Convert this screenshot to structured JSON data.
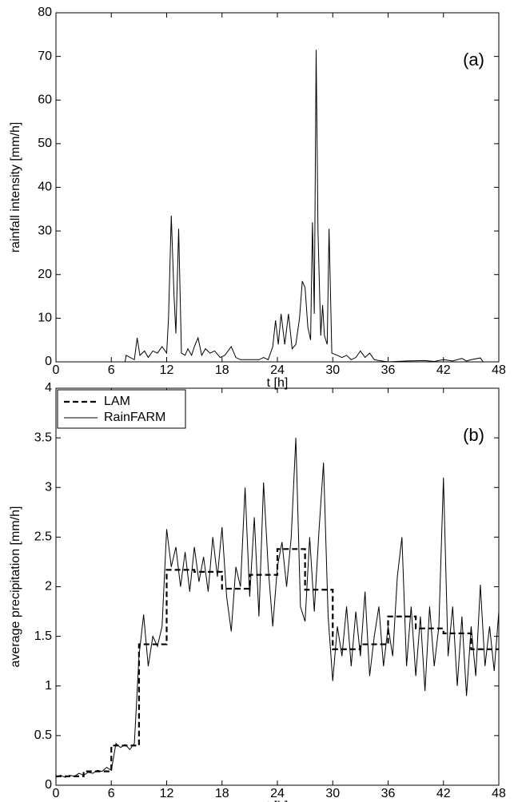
{
  "chart_data": [
    {
      "type": "line",
      "xlabel": "t [h]",
      "ylabel": "rainfall intensity [mm/h]",
      "annotation": "(a)",
      "xlim": [
        0,
        48
      ],
      "xticks": [
        0,
        6,
        12,
        18,
        24,
        30,
        36,
        42,
        48
      ],
      "ylim": [
        0,
        80
      ],
      "yticks": [
        0,
        10,
        20,
        30,
        40,
        50,
        60,
        70,
        80
      ],
      "x": [
        0,
        7.5,
        7.6,
        8.5,
        8.8,
        9.1,
        9.6,
        10,
        10.5,
        11,
        11.5,
        12,
        12.2,
        12.5,
        12.8,
        13,
        13.3,
        13.6,
        14,
        14.3,
        14.7,
        15,
        15.4,
        15.8,
        16.2,
        16.7,
        17.2,
        17.8,
        18.3,
        19,
        19.5,
        20,
        21,
        22,
        22.5,
        23,
        23.5,
        23.8,
        24.1,
        24.4,
        24.8,
        25.2,
        25.6,
        26,
        26.4,
        26.7,
        27,
        27.3,
        27.6,
        27.8,
        28,
        28.2,
        28.4,
        28.7,
        28.9,
        29.1,
        29.4,
        29.6,
        29.9,
        30.5,
        31,
        31.5,
        32,
        32.5,
        33,
        33.5,
        34,
        34.5,
        35,
        36,
        38,
        40,
        41,
        42,
        43,
        44,
        44.5,
        45,
        46,
        46.3,
        48
      ],
      "series": [
        {
          "color": "#000000",
          "style": "solid",
          "values": [
            0,
            0,
            1.5,
            0.5,
            5.5,
            1.5,
            2.5,
            1,
            2.5,
            2,
            3.5,
            2,
            10,
            33.5,
            15,
            6.5,
            30.5,
            2,
            1.5,
            3,
            1.5,
            3.5,
            5.5,
            1.5,
            3,
            2,
            2.5,
            1,
            1.5,
            3.5,
            1,
            0.5,
            0.5,
            0.5,
            1,
            0.5,
            3.5,
            9.5,
            4,
            11,
            4,
            11,
            3,
            4,
            10,
            18.5,
            17,
            8,
            5,
            32,
            11,
            71.5,
            30,
            6,
            13,
            6,
            4,
            30.5,
            2,
            1.5,
            1,
            1.5,
            0.5,
            1,
            2.5,
            1,
            2,
            0.5,
            0.3,
            0,
            0.2,
            0.3,
            0.1,
            0.5,
            0.2,
            0.8,
            0.2,
            0.5,
            0.9,
            0,
            0
          ]
        }
      ]
    },
    {
      "type": "line",
      "xlabel": "t [h]",
      "ylabel": "average precipitation [mm/h]",
      "annotation": "(b)",
      "legend": "upper left",
      "xlim": [
        0,
        48
      ],
      "xticks": [
        0,
        6,
        12,
        18,
        24,
        30,
        36,
        42,
        48
      ],
      "ylim": [
        0,
        4
      ],
      "yticks": [
        0,
        0.5,
        1,
        1.5,
        2,
        2.5,
        3,
        3.5,
        4
      ],
      "x": [
        0,
        0.5,
        1,
        1.5,
        2,
        2.5,
        3,
        3.5,
        4,
        4.5,
        5,
        5.5,
        6,
        6.5,
        7,
        7.5,
        8,
        8.5,
        9,
        9.5,
        10,
        10.5,
        11,
        11.5,
        12,
        12.5,
        13,
        13.5,
        14,
        14.5,
        15,
        15.5,
        16,
        16.5,
        17,
        17.5,
        18,
        18.5,
        19,
        19.5,
        20,
        20.5,
        21,
        21.5,
        22,
        22.5,
        23,
        23.5,
        24,
        24.5,
        25,
        25.5,
        26,
        26.5,
        27,
        27.5,
        28,
        28.5,
        29,
        29.5,
        30,
        30.5,
        31,
        31.5,
        32,
        32.5,
        33,
        33.5,
        34,
        34.5,
        35,
        35.5,
        36,
        36.5,
        37,
        37.5,
        38,
        38.5,
        39,
        39.5,
        40,
        40.5,
        41,
        41.5,
        42,
        42.5,
        43,
        43.5,
        44,
        44.5,
        45,
        45.5,
        46,
        46.5,
        47,
        47.5,
        48
      ],
      "series": [
        {
          "name": "LAM",
          "color": "#000000",
          "style": "dashed",
          "x": [
            0,
            3,
            3,
            6,
            6,
            9,
            9,
            12,
            12,
            15,
            15,
            18,
            18,
            21,
            21,
            24,
            24,
            27,
            27,
            30,
            30,
            33,
            33,
            36,
            36,
            39,
            39,
            42,
            42,
            45,
            45,
            48
          ],
          "values": [
            0.09,
            0.09,
            0.14,
            0.14,
            0.4,
            0.4,
            1.42,
            1.42,
            2.17,
            2.17,
            2.15,
            2.15,
            1.98,
            1.98,
            2.12,
            2.12,
            2.38,
            2.38,
            1.97,
            1.97,
            1.37,
            1.37,
            1.42,
            1.42,
            1.7,
            1.7,
            1.58,
            1.58,
            1.53,
            1.53,
            1.37,
            1.37
          ]
        },
        {
          "name": "RainFARM",
          "color": "#000000",
          "style": "solid",
          "values": [
            0.08,
            0.1,
            0.08,
            0.1,
            0.09,
            0.12,
            0.1,
            0.13,
            0.12,
            0.15,
            0.14,
            0.18,
            0.15,
            0.42,
            0.38,
            0.41,
            0.36,
            0.42,
            1.3,
            1.72,
            1.2,
            1.5,
            1.4,
            1.6,
            2.58,
            2.2,
            2.4,
            2.0,
            2.35,
            1.95,
            2.4,
            2.05,
            2.3,
            1.95,
            2.5,
            2.1,
            2.6,
            1.9,
            1.55,
            2.2,
            2.0,
            3.0,
            1.9,
            2.7,
            1.7,
            3.05,
            2.2,
            1.6,
            2.2,
            2.45,
            2.0,
            2.5,
            3.5,
            1.8,
            1.65,
            2.5,
            1.75,
            2.55,
            3.25,
            1.7,
            1.05,
            1.6,
            1.3,
            1.8,
            1.2,
            1.75,
            1.3,
            1.95,
            1.1,
            1.5,
            1.8,
            1.2,
            1.6,
            1.3,
            2.1,
            2.5,
            1.2,
            1.8,
            1.1,
            1.7,
            0.95,
            1.8,
            1.2,
            1.6,
            3.1,
            1.3,
            1.8,
            1.0,
            1.7,
            0.9,
            1.6,
            1.1,
            2.02,
            1.2,
            1.6,
            1.15,
            1.75
          ]
        }
      ]
    }
  ]
}
